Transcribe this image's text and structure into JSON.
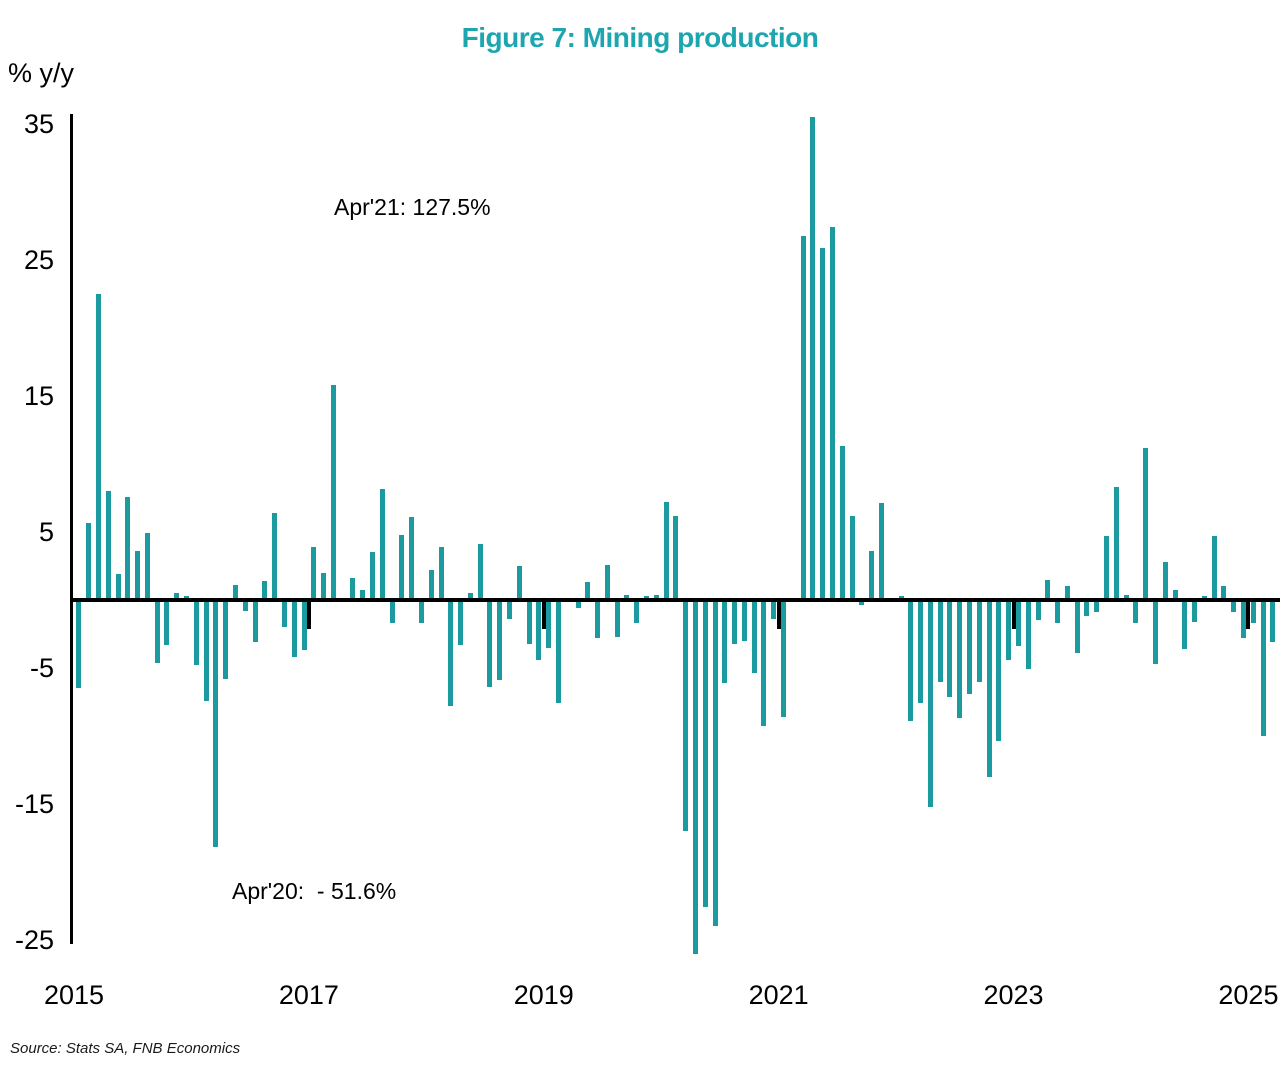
{
  "title": "Figure 7: Mining production",
  "y_axis_label": "% y/y",
  "annotations": {
    "apr21": {
      "text": "Apr'21: 127.5%"
    },
    "apr20": {
      "text": "Apr'20:  - 51.6%"
    }
  },
  "source": "Source: Stats SA, FNB Economics",
  "colors": {
    "bar": "#1b9b9f",
    "title": "#1ea6b0",
    "axis": "#000000"
  },
  "chart_data": {
    "type": "bar",
    "title": "Figure 7: Mining production",
    "ylabel": "% y/y",
    "x_unit": "month",
    "x_start": "2015-01",
    "x_end": "2025-03",
    "x_tick_labels": [
      "2015",
      "2017",
      "2019",
      "2021",
      "2023",
      "2025"
    ],
    "y_ticks": [
      35,
      25,
      15,
      5,
      -5,
      -15,
      -25
    ],
    "ylim_display": [
      -26,
      36
    ],
    "grid": false,
    "legend": false,
    "series": [
      {
        "name": "Mining production, % y/y",
        "values": [
          -6.5,
          5.7,
          22.5,
          8.0,
          1.9,
          7.6,
          3.6,
          4.9,
          -4.6,
          -3.3,
          0.5,
          0.3,
          -4.8,
          -7.4,
          -18.2,
          -5.8,
          1.1,
          -0.8,
          -3.1,
          1.4,
          6.4,
          -2.0,
          -4.2,
          -3.7,
          3.9,
          2.0,
          15.8,
          0.0,
          1.6,
          0.7,
          3.5,
          8.2,
          -1.7,
          4.8,
          6.1,
          -1.7,
          2.2,
          3.9,
          -7.8,
          -3.3,
          0.5,
          4.1,
          -6.4,
          -5.9,
          -1.4,
          2.5,
          -3.2,
          -4.4,
          -3.5,
          -7.6,
          0.0,
          -0.6,
          1.3,
          -2.8,
          2.6,
          -2.7,
          0.4,
          -1.7,
          0.3,
          0.4,
          7.2,
          6.2,
          -17.0,
          -51.6,
          -22.6,
          -24.0,
          -6.1,
          -3.2,
          -3.0,
          -5.4,
          -9.3,
          -1.4,
          -8.6,
          0.0,
          26.8,
          127.5,
          25.9,
          27.4,
          11.3,
          6.2,
          -0.4,
          3.6,
          7.1,
          0.0,
          0.3,
          -8.9,
          -7.6,
          -15.2,
          -6.0,
          -7.1,
          -8.7,
          -6.9,
          -6.0,
          -13.0,
          -10.4,
          -4.4,
          -3.4,
          -5.1,
          -1.5,
          1.5,
          -1.7,
          1.0,
          -3.9,
          -1.2,
          -0.9,
          4.7,
          8.3,
          0.4,
          -1.7,
          11.2,
          -4.7,
          2.8,
          0.7,
          -3.6,
          -1.6,
          0.3,
          4.7,
          1.0,
          -0.9,
          -2.8,
          -1.7,
          -10.0,
          -3.1
        ]
      }
    ],
    "clipped_points": [
      {
        "month": "2020-04",
        "true_value": -51.6,
        "note": "bar truncated at bottom of plot"
      },
      {
        "month": "2021-04",
        "true_value": 127.5,
        "note": "bar truncated at top of plot"
      }
    ]
  }
}
